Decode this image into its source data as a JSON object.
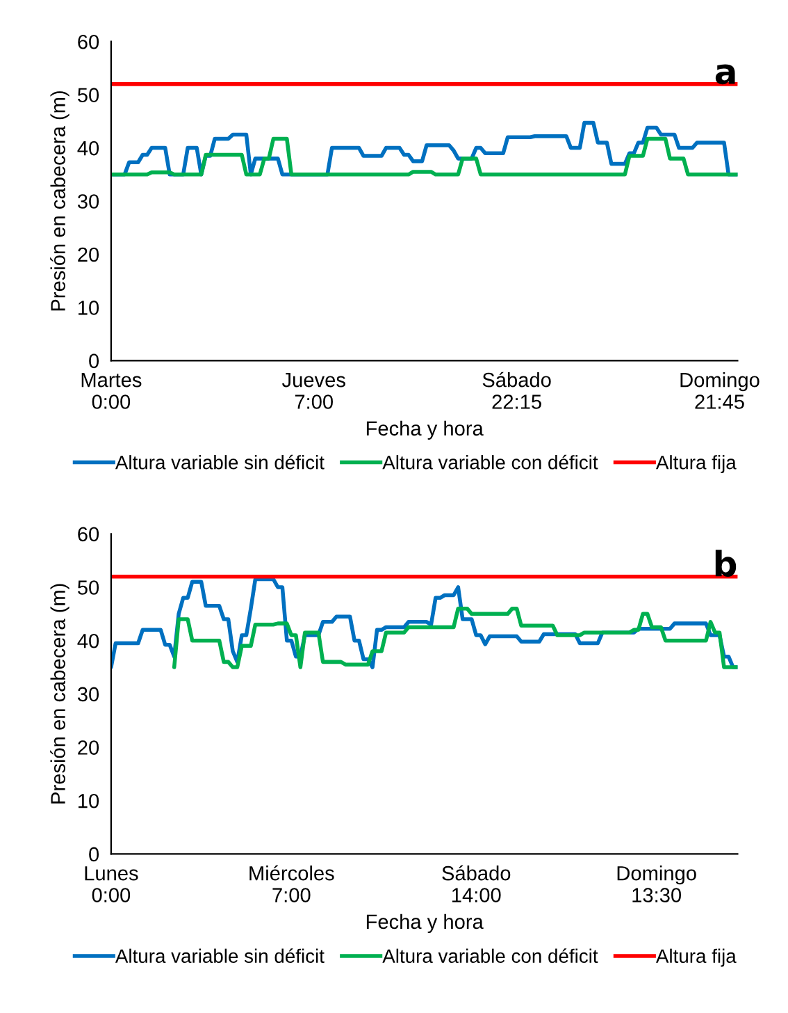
{
  "chart_data": [
    {
      "type": "line",
      "annotations": [
        "a"
      ],
      "xlabel": "Fecha y hora",
      "ylabel": "Presión en cabecera (m)",
      "ylim": [
        0,
        60
      ],
      "yticks": [
        0,
        10,
        20,
        30,
        40,
        50,
        60
      ],
      "grid": false,
      "legend": "bottom",
      "marker": "none",
      "line_style": "solid",
      "categories": [
        "Martes\n0:00",
        null,
        null,
        null,
        null,
        null,
        null,
        null,
        null,
        null,
        null,
        null,
        null,
        null,
        null,
        null,
        null,
        null,
        null,
        null,
        null,
        null,
        null,
        null,
        null,
        null,
        null,
        null,
        null,
        null,
        null,
        null,
        null,
        null,
        null,
        null,
        null,
        null,
        null,
        null,
        null,
        null,
        null,
        null,
        null,
        "Jueves\n7:00",
        null,
        null,
        null,
        null,
        null,
        null,
        null,
        null,
        null,
        null,
        null,
        null,
        null,
        null,
        null,
        null,
        null,
        null,
        null,
        null,
        null,
        null,
        null,
        null,
        null,
        null,
        null,
        null,
        null,
        null,
        null,
        null,
        null,
        null,
        null,
        null,
        null,
        null,
        null,
        null,
        null,
        null,
        null,
        null,
        "Sábado\n22:15",
        null,
        null,
        null,
        null,
        null,
        null,
        null,
        null,
        null,
        null,
        null,
        null,
        null,
        null,
        null,
        null,
        null,
        null,
        null,
        null,
        null,
        null,
        null,
        null,
        null,
        null,
        null,
        null,
        null,
        null,
        null,
        null,
        null,
        null,
        null,
        null,
        null,
        null,
        null,
        null,
        null,
        null,
        null,
        null,
        "Domingo\n21:45",
        null,
        null,
        null,
        null
      ],
      "series": [
        {
          "name": "Altura variable sin déficit",
          "color": "#0070c0",
          "values": [
            35,
            35,
            35,
            35,
            37.3,
            37.3,
            37.3,
            38.7,
            38.7,
            40,
            40,
            40,
            40,
            35,
            35,
            35,
            35,
            40,
            40,
            40,
            35,
            38.5,
            38.5,
            41.7,
            41.7,
            41.7,
            41.7,
            42.5,
            42.5,
            42.5,
            42.5,
            35,
            38,
            38,
            38,
            38,
            38,
            38,
            35,
            35,
            35,
            35,
            35,
            35,
            35,
            35,
            35,
            35,
            35,
            40,
            40,
            40,
            40,
            40,
            40,
            40,
            38.5,
            38.5,
            38.5,
            38.5,
            38.5,
            40,
            40,
            40,
            40,
            38.7,
            38.7,
            37.5,
            37.5,
            37.5,
            40.5,
            40.5,
            40.5,
            40.5,
            40.5,
            40.5,
            39.5,
            38,
            38,
            38,
            38,
            40,
            40,
            39,
            39,
            39,
            39,
            39,
            42,
            42,
            42,
            42,
            42,
            42,
            42.2,
            42.2,
            42.2,
            42.2,
            42.2,
            42.2,
            42.2,
            42.2,
            40,
            40,
            40,
            44.7,
            44.7,
            44.7,
            41,
            41,
            41,
            37,
            37,
            37,
            37,
            39,
            39,
            41,
            41,
            43.8,
            43.8,
            43.8,
            42.5,
            42.5,
            42.5,
            42.5,
            40,
            40,
            40,
            40,
            41,
            41,
            41,
            41,
            41,
            41,
            41,
            35,
            35,
            35
          ]
        },
        {
          "name": "Altura variable con déficit",
          "color": "#00b050",
          "values": [
            35,
            35,
            35,
            35,
            35,
            35,
            35,
            35,
            35,
            35.4,
            35.4,
            35.4,
            35.4,
            35.4,
            35,
            35,
            35,
            35,
            35,
            35,
            35,
            38.7,
            38.7,
            38.7,
            38.7,
            38.7,
            38.7,
            38.7,
            38.7,
            38.7,
            35,
            35,
            35,
            35,
            38,
            38,
            41.7,
            41.7,
            41.7,
            41.7,
            35,
            35,
            35,
            35,
            35,
            35,
            35,
            35,
            35,
            35,
            35,
            35,
            35,
            35,
            35,
            35,
            35,
            35,
            35,
            35,
            35,
            35,
            35,
            35,
            35,
            35,
            35,
            35.5,
            35.5,
            35.5,
            35.5,
            35.5,
            35,
            35,
            35,
            35,
            35,
            35,
            38,
            38,
            38,
            38,
            35,
            35,
            35,
            35,
            35,
            35,
            35,
            35,
            35,
            35,
            35,
            35,
            35,
            35,
            35,
            35,
            35,
            35,
            35,
            35,
            35,
            35,
            35,
            35,
            35,
            35,
            35,
            35,
            35,
            35,
            35,
            35,
            35,
            38.5,
            38.5,
            38.5,
            38.5,
            41.7,
            41.7,
            41.7,
            41.7,
            41.7,
            38,
            38,
            38,
            38,
            35,
            35,
            35,
            35,
            35,
            35,
            35,
            35,
            35,
            35,
            35,
            35
          ]
        },
        {
          "name": "Altura fija",
          "color": "#ff0000",
          "values": [
            52,
            52,
            52,
            52,
            52,
            52,
            52,
            52,
            52,
            52,
            52,
            52,
            52,
            52,
            52,
            52,
            52,
            52,
            52,
            52,
            52,
            52,
            52,
            52,
            52,
            52,
            52,
            52,
            52,
            52,
            52,
            52,
            52,
            52,
            52,
            52,
            52,
            52,
            52,
            52,
            52,
            52,
            52,
            52,
            52,
            52,
            52,
            52,
            52,
            52,
            52,
            52,
            52,
            52,
            52,
            52,
            52,
            52,
            52,
            52,
            52,
            52,
            52,
            52,
            52,
            52,
            52,
            52,
            52,
            52,
            52,
            52,
            52,
            52,
            52,
            52,
            52,
            52,
            52,
            52,
            52,
            52,
            52,
            52,
            52,
            52,
            52,
            52,
            52,
            52,
            52,
            52,
            52,
            52,
            52,
            52,
            52,
            52,
            52,
            52,
            52,
            52,
            52,
            52,
            52,
            52,
            52,
            52,
            52,
            52,
            52,
            52,
            52,
            52,
            52,
            52,
            52,
            52,
            52,
            52,
            52,
            52,
            52,
            52,
            52,
            52,
            52,
            52,
            52,
            52,
            52,
            52,
            52,
            52,
            52,
            52,
            52,
            52,
            52,
            52
          ]
        }
      ]
    },
    {
      "type": "line",
      "annotations": [
        "b"
      ],
      "xlabel": "Fecha y hora",
      "ylabel": "Presión en cabecera (m)",
      "ylim": [
        0,
        60
      ],
      "yticks": [
        0,
        10,
        20,
        30,
        40,
        50,
        60
      ],
      "grid": false,
      "legend": "bottom",
      "marker": "none",
      "line_style": "solid",
      "categories": [
        "Lunes\n0:00",
        null,
        null,
        null,
        null,
        null,
        null,
        null,
        null,
        null,
        null,
        null,
        null,
        null,
        null,
        null,
        null,
        null,
        null,
        null,
        null,
        null,
        null,
        null,
        null,
        null,
        null,
        null,
        null,
        null,
        null,
        null,
        null,
        null,
        null,
        null,
        null,
        null,
        null,
        null,
        "Miércoles\n7:00",
        null,
        null,
        null,
        null,
        null,
        null,
        null,
        null,
        null,
        null,
        null,
        null,
        null,
        null,
        null,
        null,
        null,
        null,
        null,
        null,
        null,
        null,
        null,
        null,
        null,
        null,
        null,
        null,
        null,
        null,
        null,
        null,
        null,
        null,
        null,
        null,
        null,
        null,
        null,
        null,
        "Sábado\n14:00",
        null,
        null,
        null,
        null,
        null,
        null,
        null,
        null,
        null,
        null,
        null,
        null,
        null,
        null,
        null,
        null,
        null,
        null,
        null,
        null,
        null,
        null,
        null,
        null,
        null,
        null,
        null,
        null,
        null,
        null,
        null,
        null,
        null,
        null,
        null,
        null,
        null,
        null,
        null,
        "Domingo\n13:30",
        null,
        null,
        null,
        null,
        null,
        null,
        null,
        null,
        null,
        null,
        null,
        null,
        null,
        null,
        null,
        null,
        null,
        null
      ],
      "series": [
        {
          "name": "Altura variable sin déficit",
          "color": "#0070c0",
          "values": [
            35,
            39.5,
            39.5,
            39.5,
            39.5,
            39.5,
            39.5,
            42,
            42,
            42,
            42,
            42,
            39.2,
            39.2,
            37,
            45,
            48,
            48,
            51,
            51,
            51,
            46.5,
            46.5,
            46.5,
            46.5,
            44,
            44,
            38,
            36,
            41,
            41,
            46,
            51.5,
            51.5,
            51.5,
            51.5,
            51.5,
            50,
            50,
            40,
            40,
            37,
            37,
            41,
            41,
            41,
            41,
            43.5,
            43.5,
            43.5,
            44.5,
            44.5,
            44.5,
            44.5,
            40,
            40,
            36.5,
            36.5,
            35,
            42,
            42,
            42.5,
            42.5,
            42.5,
            42.5,
            42.5,
            43.5,
            43.5,
            43.5,
            43.5,
            43.5,
            43,
            48,
            48,
            48.5,
            48.5,
            48.5,
            50,
            44,
            44,
            44,
            41,
            41,
            39.3,
            40.8,
            40.8,
            40.8,
            40.8,
            40.8,
            40.8,
            40.8,
            39.8,
            39.8,
            39.8,
            39.8,
            39.8,
            41.2,
            41.2,
            41.2,
            41.2,
            41.2,
            41.2,
            41.2,
            41.2,
            39.5,
            39.5,
            39.5,
            39.5,
            39.5,
            41.5,
            41.5,
            41.5,
            41.5,
            41.5,
            41.5,
            41.5,
            41.5,
            42.2,
            42.2,
            42.2,
            42.2,
            42.2,
            42.2,
            42.2,
            42.2,
            43.2,
            43.2,
            43.2,
            43.2,
            43.2,
            43.2,
            43.2,
            43.2,
            41,
            41,
            41,
            37,
            37,
            35,
            35
          ]
        },
        {
          "name": "Altura variable con déficit",
          "color": "#00b050",
          "values": [
            null,
            null,
            null,
            null,
            null,
            null,
            null,
            null,
            null,
            null,
            null,
            null,
            null,
            null,
            35,
            44,
            44,
            44,
            40,
            40,
            40,
            40,
            40,
            40,
            40,
            36,
            36,
            35,
            35,
            39,
            39,
            39,
            43,
            43,
            43,
            43,
            43,
            43.2,
            43.2,
            43.2,
            41,
            41,
            35,
            41.5,
            41.5,
            41.5,
            41.5,
            36,
            36,
            36,
            36,
            36,
            35.5,
            35.5,
            35.5,
            35.5,
            35.5,
            35.5,
            38,
            38,
            38,
            41.5,
            41.5,
            41.5,
            41.5,
            41.5,
            42.5,
            42.5,
            42.5,
            42.5,
            42.5,
            42.5,
            42.5,
            42.5,
            42.5,
            42.5,
            42.5,
            46,
            46,
            46,
            45,
            45,
            45,
            45,
            45,
            45,
            45,
            45,
            45,
            46,
            46,
            42.8,
            42.8,
            42.8,
            42.8,
            42.8,
            42.8,
            42.8,
            42.8,
            41,
            41,
            41,
            41,
            41,
            41,
            41.5,
            41.5,
            41.5,
            41.5,
            41.5,
            41.5,
            41.5,
            41.5,
            41.5,
            41.5,
            41.5,
            42,
            42,
            45,
            45,
            42.5,
            42.5,
            42.5,
            40,
            40,
            40,
            40,
            40,
            40,
            40,
            40,
            40,
            40,
            43.5,
            41.5,
            41.5,
            35,
            35,
            35,
            35
          ]
        },
        {
          "name": "Altura fija",
          "color": "#ff0000",
          "values": [
            52,
            52,
            52,
            52,
            52,
            52,
            52,
            52,
            52,
            52,
            52,
            52,
            52,
            52,
            52,
            52,
            52,
            52,
            52,
            52,
            52,
            52,
            52,
            52,
            52,
            52,
            52,
            52,
            52,
            52,
            52,
            52,
            52,
            52,
            52,
            52,
            52,
            52,
            52,
            52,
            52,
            52,
            52,
            52,
            52,
            52,
            52,
            52,
            52,
            52,
            52,
            52,
            52,
            52,
            52,
            52,
            52,
            52,
            52,
            52,
            52,
            52,
            52,
            52,
            52,
            52,
            52,
            52,
            52,
            52,
            52,
            52,
            52,
            52,
            52,
            52,
            52,
            52,
            52,
            52,
            52,
            52,
            52,
            52,
            52,
            52,
            52,
            52,
            52,
            52,
            52,
            52,
            52,
            52,
            52,
            52,
            52,
            52,
            52,
            52,
            52,
            52,
            52,
            52,
            52,
            52,
            52,
            52,
            52,
            52,
            52,
            52,
            52,
            52,
            52,
            52,
            52,
            52,
            52,
            52,
            52,
            52,
            52,
            52,
            52,
            52,
            52,
            52,
            52,
            52,
            52,
            52,
            52,
            52,
            52,
            52,
            52,
            52,
            52,
            52
          ]
        }
      ]
    }
  ]
}
